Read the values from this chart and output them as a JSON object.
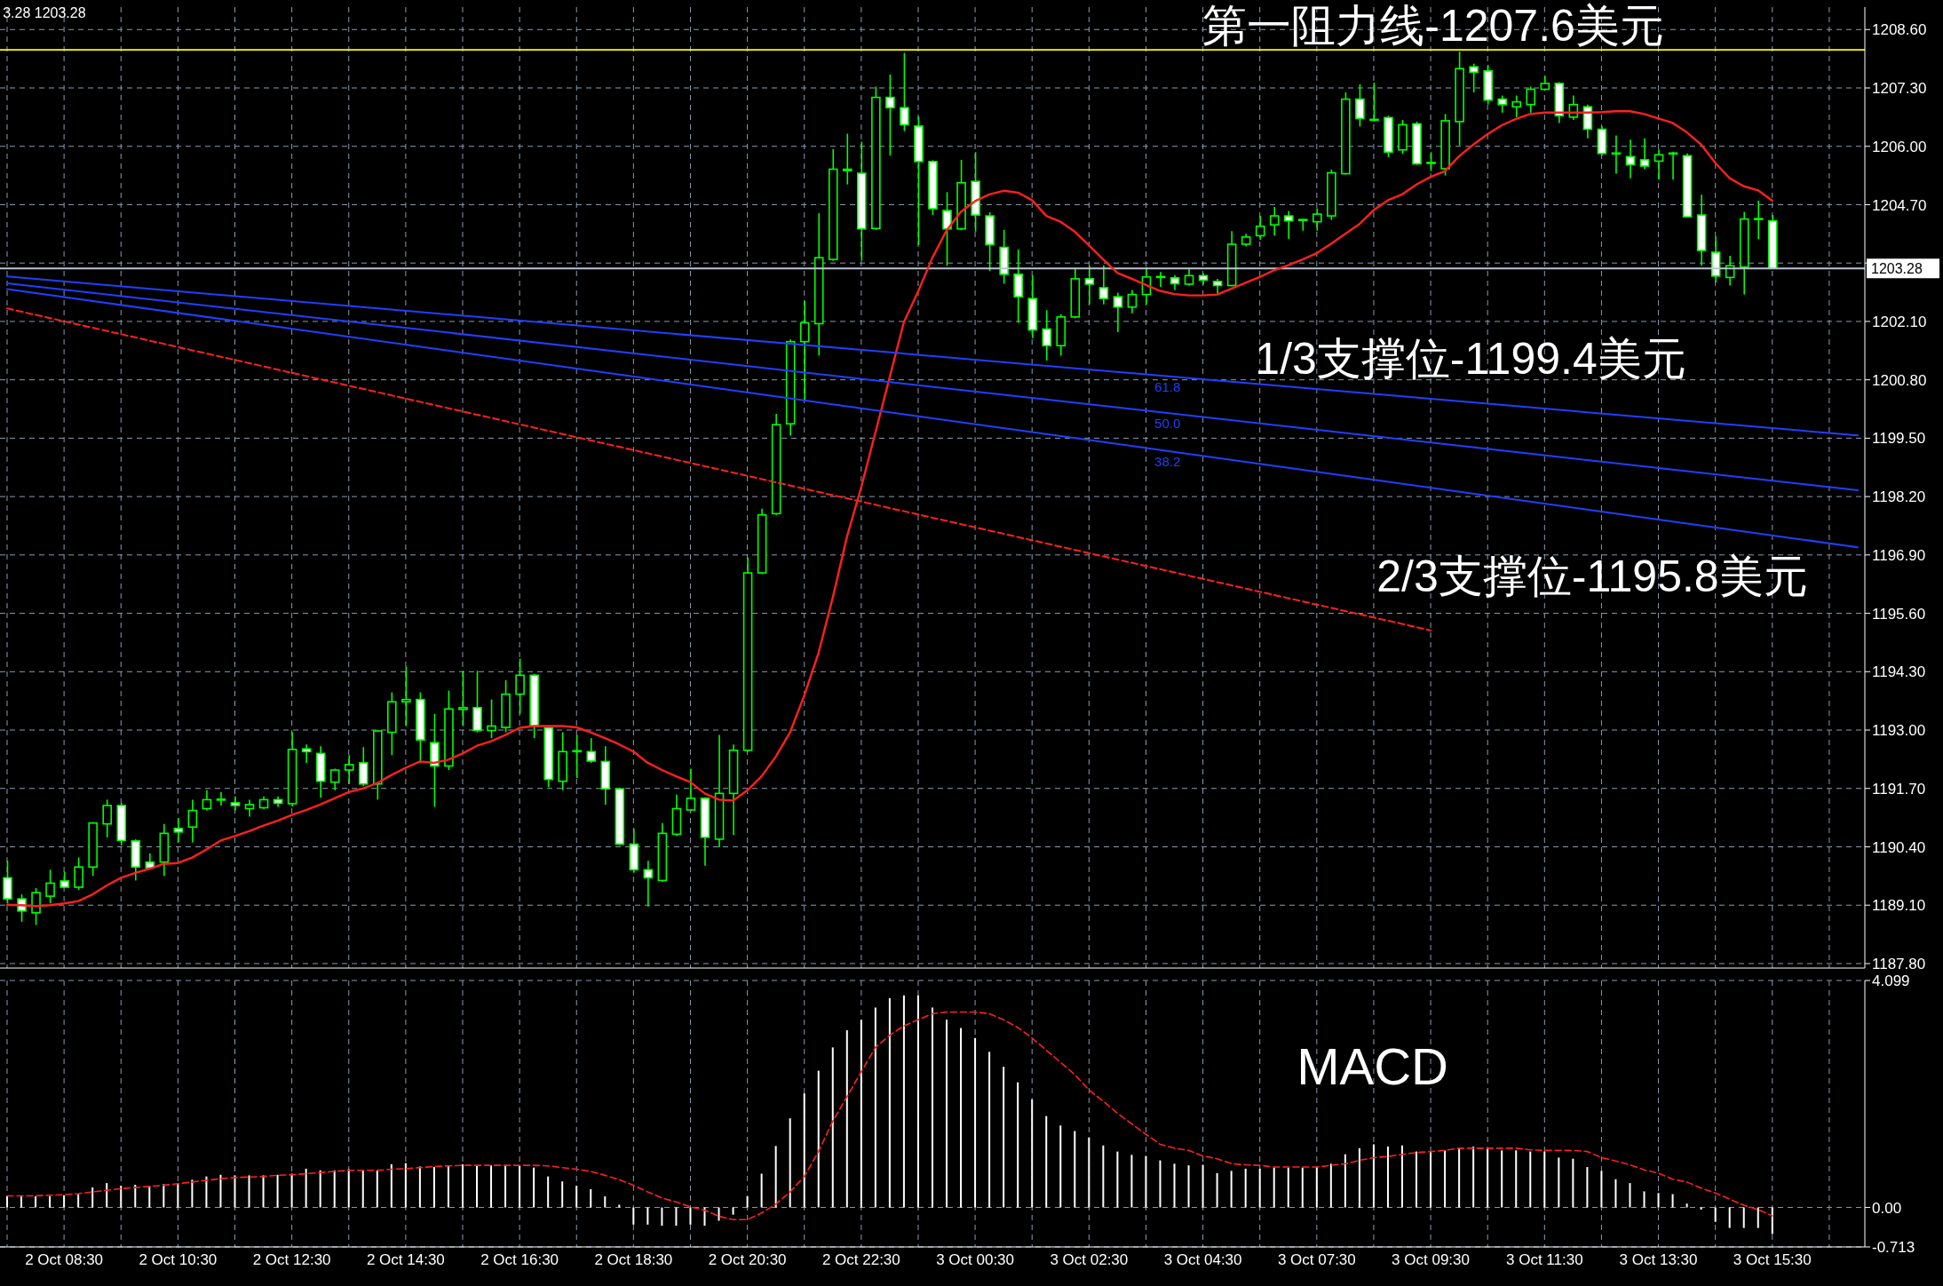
{
  "chart_data": [
    {
      "type": "candlestick",
      "color": "#00ff00",
      "annotations": [
        "3.28 1203.28",
        "第一阻力线-1207.6美元",
        "1/3支撑位-1199.4美元",
        "2/3支撑位-1195.8美元"
      ],
      "categories": [
        null,
        null,
        null,
        null,
        null,
        null,
        null,
        null,
        null,
        null,
        null,
        null,
        null,
        null,
        null,
        null,
        null,
        null,
        null,
        null,
        null,
        null,
        null,
        null,
        null,
        null,
        null,
        null,
        null,
        null,
        null,
        null,
        null,
        null,
        null,
        null,
        null,
        null,
        null,
        null,
        null,
        null,
        null,
        null,
        null,
        null,
        null,
        null,
        null,
        null,
        null,
        null,
        null,
        null,
        null,
        null,
        null,
        null,
        null,
        null,
        null,
        null,
        null,
        null,
        null,
        null,
        null,
        null,
        null,
        null,
        null,
        null,
        null,
        null,
        null,
        null,
        null,
        null,
        null,
        null,
        null,
        null,
        null,
        null,
        null,
        null,
        null,
        null,
        null,
        null,
        null,
        null,
        null,
        null,
        null,
        null,
        null,
        null,
        null,
        null,
        null,
        null,
        null,
        null,
        null,
        null,
        null,
        null,
        null,
        null,
        null,
        null,
        null,
        null,
        null,
        null,
        null,
        null,
        null,
        null,
        null,
        null,
        null,
        null,
        null,
        null,
        null,
        null,
        null,
        null,
        null
      ],
      "ohlc": [
        [
          1189.71,
          1190.09,
          1189.14,
          1189.24
        ],
        [
          1189.24,
          1189.34,
          1188.73,
          1188.97
        ],
        [
          1188.93,
          1189.48,
          1188.66,
          1189.38
        ],
        [
          1189.3,
          1189.89,
          1189.14,
          1189.59
        ],
        [
          1189.64,
          1189.85,
          1189.48,
          1189.5
        ],
        [
          1189.5,
          1190.16,
          1189.44,
          1189.95
        ],
        [
          1189.95,
          1190.95,
          1189.75,
          1190.93
        ],
        [
          1190.91,
          1191.45,
          1190.61,
          1191.32
        ],
        [
          1191.32,
          1191.38,
          1190.43,
          1190.54
        ],
        [
          1190.53,
          1190.57,
          1189.65,
          1189.95
        ],
        [
          1190.06,
          1190.25,
          1189.9,
          1189.93
        ],
        [
          1190.06,
          1190.91,
          1189.75,
          1190.7
        ],
        [
          1190.81,
          1191.04,
          1190.5,
          1190.73
        ],
        [
          1190.84,
          1191.45,
          1190.5,
          1191.21
        ],
        [
          1191.25,
          1191.66,
          1191.21,
          1191.45
        ],
        [
          1191.44,
          1191.62,
          1191.32,
          1191.46
        ],
        [
          1191.38,
          1191.52,
          1191.21,
          1191.32
        ],
        [
          1191.25,
          1191.45,
          1191.07,
          1191.34
        ],
        [
          1191.27,
          1191.52,
          1191.24,
          1191.45
        ],
        [
          1191.45,
          1191.52,
          1191.29,
          1191.37
        ],
        [
          1191.36,
          1192.95,
          1191.3,
          1192.57
        ],
        [
          1192.58,
          1192.68,
          1192.27,
          1192.52
        ],
        [
          1192.48,
          1192.64,
          1191.49,
          1191.86
        ],
        [
          1191.84,
          1192.14,
          1191.66,
          1192.11
        ],
        [
          1192.11,
          1192.44,
          1191.8,
          1192.23
        ],
        [
          1192.27,
          1192.62,
          1191.75,
          1191.8
        ],
        [
          1191.8,
          1193.0,
          1191.45,
          1192.98
        ],
        [
          1192.95,
          1193.84,
          1192.44,
          1193.63
        ],
        [
          1193.63,
          1194.41,
          1193.09,
          1193.68
        ],
        [
          1193.68,
          1193.84,
          1192.27,
          1192.78
        ],
        [
          1192.72,
          1193.36,
          1191.29,
          1192.2
        ],
        [
          1192.2,
          1193.88,
          1192.11,
          1193.47
        ],
        [
          1193.46,
          1194.32,
          1193.09,
          1193.5
        ],
        [
          1193.5,
          1194.32,
          1192.95,
          1192.99
        ],
        [
          1192.99,
          1193.68,
          1192.82,
          1193.09
        ],
        [
          1193.06,
          1194.11,
          1192.95,
          1193.8
        ],
        [
          1193.8,
          1194.59,
          1193.36,
          1194.22
        ],
        [
          1194.22,
          1194.25,
          1192.82,
          1193.09
        ],
        [
          1193.05,
          1193.09,
          1191.73,
          1191.9
        ],
        [
          1191.86,
          1192.95,
          1191.66,
          1192.52
        ],
        [
          1192.52,
          1192.89,
          1191.93,
          1192.54
        ],
        [
          1192.52,
          1192.82,
          1192.27,
          1192.31
        ],
        [
          1192.3,
          1192.64,
          1191.34,
          1191.69
        ],
        [
          1191.69,
          1191.72,
          1190.44,
          1190.46
        ],
        [
          1190.46,
          1190.8,
          1189.82,
          1189.89
        ],
        [
          1189.89,
          1190.09,
          1189.07,
          1189.71
        ],
        [
          1189.65,
          1190.93,
          1189.62,
          1190.7
        ],
        [
          1190.68,
          1191.56,
          1190.64,
          1191.25
        ],
        [
          1191.22,
          1192.14,
          1191.21,
          1191.48
        ],
        [
          1191.48,
          1191.5,
          1189.98,
          1190.61
        ],
        [
          1190.57,
          1192.89,
          1190.39,
          1191.59
        ],
        [
          1191.59,
          1192.68,
          1190.66,
          1192.55
        ],
        [
          1192.55,
          1196.84,
          1192.52,
          1196.5
        ],
        [
          1196.5,
          1197.93,
          1196.47,
          1197.79
        ],
        [
          1197.82,
          1200.04,
          1197.79,
          1199.8
        ],
        [
          1199.82,
          1201.7,
          1199.56,
          1201.65
        ],
        [
          1201.65,
          1202.56,
          1200.34,
          1202.07
        ],
        [
          1202.05,
          1204.51,
          1201.34,
          1203.52
        ],
        [
          1203.48,
          1205.94,
          1203.45,
          1205.49
        ],
        [
          1205.46,
          1206.28,
          1205.15,
          1205.49
        ],
        [
          1205.4,
          1206.1,
          1203.45,
          1204.16
        ],
        [
          1204.17,
          1207.33,
          1204.14,
          1207.09
        ],
        [
          1207.09,
          1207.6,
          1205.79,
          1206.86
        ],
        [
          1206.86,
          1208.08,
          1206.34,
          1206.48
        ],
        [
          1206.45,
          1206.66,
          1203.8,
          1205.66
        ],
        [
          1205.66,
          1205.69,
          1204.47,
          1204.61
        ],
        [
          1204.57,
          1204.98,
          1203.34,
          1204.16
        ],
        [
          1204.16,
          1205.7,
          1204.13,
          1205.19
        ],
        [
          1205.22,
          1205.87,
          1204.1,
          1204.47
        ],
        [
          1204.45,
          1204.53,
          1203.22,
          1203.81
        ],
        [
          1203.75,
          1204.14,
          1202.94,
          1203.15
        ],
        [
          1203.15,
          1203.7,
          1202.07,
          1202.65
        ],
        [
          1202.61,
          1203.13,
          1201.73,
          1201.91
        ],
        [
          1201.93,
          1202.35,
          1201.23,
          1201.56
        ],
        [
          1201.56,
          1202.26,
          1201.34,
          1202.2
        ],
        [
          1202.2,
          1203.29,
          1202.17,
          1203.05
        ],
        [
          1203.05,
          1203.35,
          1202.48,
          1202.93
        ],
        [
          1202.85,
          1203.35,
          1202.48,
          1202.61
        ],
        [
          1202.65,
          1202.74,
          1201.86,
          1202.42
        ],
        [
          1202.42,
          1202.8,
          1202.28,
          1202.7
        ],
        [
          1202.7,
          1203.31,
          1202.48,
          1203.09
        ],
        [
          1203.09,
          1203.2,
          1202.87,
          1203.1
        ],
        [
          1203.07,
          1203.13,
          1202.8,
          1202.94
        ],
        [
          1202.93,
          1203.29,
          1202.9,
          1203.12
        ],
        [
          1203.12,
          1203.17,
          1202.92,
          1203.02
        ],
        [
          1202.99,
          1203.05,
          1202.72,
          1202.9
        ],
        [
          1202.9,
          1204.11,
          1202.88,
          1203.82
        ],
        [
          1203.82,
          1204.05,
          1203.77,
          1203.98
        ],
        [
          1204.01,
          1204.45,
          1203.92,
          1204.22
        ],
        [
          1204.25,
          1204.65,
          1204.01,
          1204.45
        ],
        [
          1204.45,
          1204.56,
          1203.94,
          1204.34
        ],
        [
          1204.36,
          1204.38,
          1204.12,
          1204.37
        ],
        [
          1204.32,
          1204.62,
          1204.12,
          1204.49
        ],
        [
          1204.45,
          1205.48,
          1204.36,
          1205.41
        ],
        [
          1205.39,
          1207.2,
          1205.37,
          1207.05
        ],
        [
          1207.05,
          1207.38,
          1206.44,
          1206.62
        ],
        [
          1206.59,
          1207.42,
          1206.55,
          1206.6
        ],
        [
          1206.64,
          1206.68,
          1205.76,
          1205.87
        ],
        [
          1205.92,
          1206.59,
          1205.83,
          1206.48
        ],
        [
          1206.5,
          1206.55,
          1205.59,
          1205.61
        ],
        [
          1205.63,
          1205.87,
          1205.45,
          1205.64
        ],
        [
          1205.5,
          1206.72,
          1205.35,
          1206.57
        ],
        [
          1206.55,
          1208.11,
          1206.02,
          1207.73
        ],
        [
          1207.77,
          1207.84,
          1207.2,
          1207.65
        ],
        [
          1207.68,
          1207.81,
          1206.93,
          1207.03
        ],
        [
          1207.05,
          1207.13,
          1206.75,
          1206.93
        ],
        [
          1206.88,
          1207.13,
          1206.65,
          1206.99
        ],
        [
          1206.93,
          1207.33,
          1206.75,
          1207.27
        ],
        [
          1207.27,
          1207.57,
          1207.24,
          1207.4
        ],
        [
          1207.4,
          1207.43,
          1206.52,
          1206.68
        ],
        [
          1206.65,
          1207.13,
          1206.59,
          1206.93
        ],
        [
          1206.88,
          1206.93,
          1206.18,
          1206.38
        ],
        [
          1206.38,
          1206.45,
          1205.79,
          1205.84
        ],
        [
          1205.84,
          1206.24,
          1205.39,
          1205.85
        ],
        [
          1205.77,
          1206.15,
          1205.29,
          1205.59
        ],
        [
          1205.7,
          1206.18,
          1205.49,
          1205.56
        ],
        [
          1205.67,
          1205.93,
          1205.26,
          1205.81
        ],
        [
          1205.84,
          1205.88,
          1205.26,
          1205.85
        ],
        [
          1205.79,
          1205.84,
          1204.42,
          1204.43
        ],
        [
          1204.47,
          1204.92,
          1203.34,
          1203.68
        ],
        [
          1203.64,
          1203.99,
          1202.97,
          1203.11
        ],
        [
          1203.08,
          1203.56,
          1202.9,
          1203.34
        ],
        [
          1203.31,
          1204.54,
          1202.7,
          1204.38
        ],
        [
          1204.38,
          1204.79,
          1203.93,
          1204.39
        ],
        [
          1204.34,
          1204.47,
          1203.28,
          1203.28
        ],
        null,
        null,
        null,
        null,
        null,
        null
      ],
      "series": [
        {
          "type": "line",
          "color": "#ff2020",
          "values": [
            1189.11,
            1189.1,
            1189.08,
            1189.1,
            1189.14,
            1189.19,
            1189.34,
            1189.54,
            1189.71,
            1189.82,
            1189.91,
            1190.02,
            1190.04,
            1190.16,
            1190.34,
            1190.54,
            1190.64,
            1190.75,
            1190.87,
            1190.98,
            1191.11,
            1191.22,
            1191.34,
            1191.48,
            1191.62,
            1191.7,
            1191.82,
            1192.0,
            1192.16,
            1192.3,
            1192.27,
            1192.34,
            1192.48,
            1192.65,
            1192.75,
            1192.89,
            1193.05,
            1193.09,
            1193.09,
            1193.09,
            1193.06,
            1192.95,
            1192.82,
            1192.68,
            1192.52,
            1192.27,
            1192.11,
            1191.97,
            1191.84,
            1191.59,
            1191.45,
            1191.43,
            1191.66,
            1191.97,
            1192.41,
            1192.95,
            1193.77,
            1194.72,
            1195.95,
            1197.31,
            1198.41,
            1199.63,
            1200.86,
            1202.09,
            1202.77,
            1203.52,
            1204.13,
            1204.54,
            1204.78,
            1204.93,
            1205.01,
            1204.97,
            1204.8,
            1204.45,
            1204.32,
            1204.1,
            1203.79,
            1203.48,
            1203.18,
            1203.05,
            1202.91,
            1202.78,
            1202.71,
            1202.68,
            1202.68,
            1202.7,
            1202.83,
            1202.96,
            1203.09,
            1203.24,
            1203.35,
            1203.48,
            1203.62,
            1203.83,
            1204.05,
            1204.27,
            1204.58,
            1204.8,
            1204.93,
            1205.15,
            1205.32,
            1205.45,
            1205.78,
            1206.04,
            1206.27,
            1206.47,
            1206.61,
            1206.72,
            1206.75,
            1206.75,
            1206.75,
            1206.75,
            1206.76,
            1206.78,
            1206.78,
            1206.72,
            1206.62,
            1206.52,
            1206.31,
            1206.04,
            1205.63,
            1205.29,
            1205.11,
            1205.02,
            1204.79,
            null,
            null,
            null,
            null,
            null,
            null
          ]
        },
        {
          "type": "line",
          "name": "61.8",
          "color": "#2040ff",
          "values": [
            1203.1,
            null,
            null,
            null,
            null,
            null,
            null,
            null,
            null,
            null,
            null,
            null,
            null,
            null,
            null,
            null,
            null,
            null,
            null,
            null,
            null,
            null,
            null,
            null,
            null,
            null,
            null,
            null,
            null,
            null,
            null,
            null,
            null,
            null,
            null,
            null,
            null,
            null,
            null,
            null,
            null,
            null,
            null,
            null,
            null,
            null,
            null,
            null,
            null,
            null,
            null,
            null,
            null,
            null,
            null,
            null,
            null,
            null,
            null,
            null,
            null,
            null,
            null,
            null,
            null,
            null,
            null,
            null,
            null,
            null,
            null,
            null,
            null,
            null,
            null,
            null,
            null,
            null,
            null,
            null,
            null,
            null,
            null,
            null,
            null,
            null,
            null,
            null,
            null,
            null,
            null,
            null,
            null,
            null,
            null,
            null,
            null,
            null,
            null,
            null,
            null,
            null,
            null,
            null,
            null,
            null,
            null,
            null,
            null,
            null,
            null,
            null,
            null,
            null,
            null,
            null,
            null,
            null,
            null,
            null,
            null,
            null,
            null,
            null,
            null,
            null,
            null,
            null,
            null,
            null,
            1199.56
          ]
        },
        {
          "type": "line",
          "name": "50.0",
          "color": "#2040ff",
          "values": [
            1202.95,
            null,
            null,
            null,
            null,
            null,
            null,
            null,
            null,
            null,
            null,
            null,
            null,
            null,
            null,
            null,
            null,
            null,
            null,
            null,
            null,
            null,
            null,
            null,
            null,
            null,
            null,
            null,
            null,
            null,
            null,
            null,
            null,
            null,
            null,
            null,
            null,
            null,
            null,
            null,
            null,
            null,
            null,
            null,
            null,
            null,
            null,
            null,
            null,
            null,
            null,
            null,
            null,
            null,
            null,
            null,
            null,
            null,
            null,
            null,
            null,
            null,
            null,
            null,
            null,
            null,
            null,
            null,
            null,
            null,
            null,
            null,
            null,
            null,
            null,
            null,
            null,
            null,
            null,
            null,
            null,
            null,
            null,
            null,
            null,
            null,
            null,
            null,
            null,
            null,
            null,
            null,
            null,
            null,
            null,
            null,
            null,
            null,
            null,
            null,
            null,
            null,
            null,
            null,
            null,
            null,
            null,
            null,
            null,
            null,
            null,
            null,
            null,
            null,
            null,
            null,
            null,
            null,
            null,
            null,
            null,
            null,
            null,
            null,
            null,
            null,
            null,
            null,
            null,
            null,
            1198.34
          ]
        },
        {
          "type": "line",
          "name": "38.2",
          "color": "#2040ff",
          "values": [
            1202.82,
            null,
            null,
            null,
            null,
            null,
            null,
            null,
            null,
            null,
            null,
            null,
            null,
            null,
            null,
            null,
            null,
            null,
            null,
            null,
            null,
            null,
            null,
            null,
            null,
            null,
            null,
            null,
            null,
            null,
            null,
            null,
            null,
            null,
            null,
            null,
            null,
            null,
            null,
            null,
            null,
            null,
            null,
            null,
            null,
            null,
            null,
            null,
            null,
            null,
            null,
            null,
            null,
            null,
            null,
            null,
            null,
            null,
            null,
            null,
            null,
            null,
            null,
            null,
            null,
            null,
            null,
            null,
            null,
            null,
            null,
            null,
            null,
            null,
            null,
            null,
            null,
            null,
            null,
            null,
            null,
            null,
            null,
            null,
            null,
            null,
            null,
            null,
            null,
            null,
            null,
            null,
            null,
            null,
            null,
            null,
            null,
            null,
            null,
            null,
            null,
            null,
            null,
            null,
            null,
            null,
            null,
            null,
            null,
            null,
            null,
            null,
            null,
            null,
            null,
            null,
            null,
            null,
            null,
            null,
            null,
            null,
            null,
            null,
            null,
            null,
            null,
            null,
            null,
            null,
            1197.07
          ]
        },
        {
          "type": "line",
          "color": "#ff2020",
          "line_style": "dashed",
          "values": [
            1202.39,
            null,
            null,
            null,
            null,
            null,
            null,
            null,
            null,
            null,
            null,
            null,
            null,
            null,
            null,
            null,
            null,
            null,
            null,
            null,
            null,
            null,
            null,
            null,
            null,
            null,
            null,
            null,
            null,
            null,
            null,
            null,
            null,
            null,
            null,
            null,
            null,
            null,
            null,
            null,
            null,
            null,
            null,
            null,
            null,
            null,
            null,
            null,
            null,
            null,
            null,
            null,
            null,
            null,
            null,
            null,
            null,
            null,
            null,
            null,
            null,
            null,
            null,
            null,
            null,
            null,
            null,
            null,
            null,
            null,
            null,
            null,
            null,
            null,
            null,
            null,
            null,
            null,
            null,
            null,
            null,
            null,
            null,
            null,
            null,
            null,
            null,
            null,
            null,
            null,
            null,
            null,
            null,
            null,
            null,
            null,
            null,
            null,
            null,
            null,
            1195.22,
            null,
            null,
            null,
            null,
            null,
            null,
            null,
            null,
            null,
            null,
            null,
            null,
            null,
            null,
            null,
            null,
            null,
            null,
            null,
            null,
            null,
            null,
            null,
            null,
            null,
            null,
            null,
            null,
            null,
            null
          ]
        }
      ],
      "ylim": [
        1187.7,
        1209.1
      ],
      "yticks": [
        {
          "value": 1208.6,
          "label": "1208.60"
        },
        {
          "value": 1207.3,
          "label": "1207.30"
        },
        {
          "value": 1206,
          "label": "1206.00"
        },
        {
          "value": 1204.7,
          "label": "1204.70"
        },
        {
          "value": 1203.4,
          "label": null
        },
        {
          "value": 1202.1,
          "label": "1202.10"
        },
        {
          "value": 1200.8,
          "label": "1200.80"
        },
        {
          "value": 1199.5,
          "label": "1199.50"
        },
        {
          "value": 1198.2,
          "label": "1198.20"
        },
        {
          "value": 1196.9,
          "label": "1196.90"
        },
        {
          "value": 1195.6,
          "label": "1195.60"
        },
        {
          "value": 1194.3,
          "label": "1194.30"
        },
        {
          "value": 1193,
          "label": "1193.00"
        },
        {
          "value": 1191.7,
          "label": "1191.70"
        },
        {
          "value": 1190.4,
          "label": "1190.40"
        },
        {
          "value": 1189.1,
          "label": "1189.10"
        },
        {
          "value": 1187.8,
          "label": "1187.80"
        }
      ],
      "grid": true,
      "ref_lines": [
        {
          "axis": "y",
          "value": 1208.15,
          "color": "#ffff00"
        },
        {
          "axis": "y",
          "value": 1203.28,
          "label": "1203.28",
          "color": "#b8c4d4"
        }
      ]
    },
    {
      "type": "bar",
      "title": "MACD",
      "categories": [
        null,
        null,
        null,
        null,
        "2 Oct 08:30",
        null,
        null,
        null,
        null,
        null,
        null,
        null,
        "2 Oct 10:30",
        null,
        null,
        null,
        null,
        null,
        null,
        null,
        "2 Oct 12:30",
        null,
        null,
        null,
        null,
        null,
        null,
        null,
        "2 Oct 14:30",
        null,
        null,
        null,
        null,
        null,
        null,
        null,
        "2 Oct 16:30",
        null,
        null,
        null,
        null,
        null,
        null,
        null,
        "2 Oct 18:30",
        null,
        null,
        null,
        null,
        null,
        null,
        null,
        "2 Oct 20:30",
        null,
        null,
        null,
        null,
        null,
        null,
        null,
        "2 Oct 22:30",
        null,
        null,
        null,
        null,
        null,
        null,
        null,
        "3 Oct 00:30",
        null,
        null,
        null,
        null,
        null,
        null,
        null,
        "3 Oct 02:30",
        null,
        null,
        null,
        null,
        null,
        null,
        null,
        "3 Oct 04:30",
        null,
        null,
        null,
        null,
        null,
        null,
        null,
        "3 Oct 07:30",
        null,
        null,
        null,
        null,
        null,
        null,
        null,
        "3 Oct 09:30",
        null,
        null,
        null,
        null,
        null,
        null,
        null,
        "3 Oct 11:30",
        null,
        null,
        null,
        null,
        null,
        null,
        null,
        "3 Oct 13:30",
        null,
        null,
        null,
        null,
        null,
        null,
        null,
        "3 Oct 15:30",
        null,
        null,
        null,
        null,
        null,
        null
      ],
      "series": [
        {
          "type": "bar",
          "color": "#ffffff",
          "values": [
            0.2,
            0.2,
            0.2,
            0.2,
            0.22,
            0.24,
            0.36,
            0.44,
            0.39,
            0.41,
            0.39,
            0.42,
            0.44,
            0.5,
            0.56,
            0.59,
            0.58,
            0.58,
            0.58,
            0.59,
            0.61,
            0.7,
            0.67,
            0.67,
            0.69,
            0.67,
            0.67,
            0.78,
            0.8,
            0.74,
            0.73,
            0.76,
            0.78,
            0.76,
            0.76,
            0.76,
            0.76,
            0.72,
            0.56,
            0.47,
            0.39,
            0.33,
            0.2,
            0.05,
            -0.31,
            -0.31,
            -0.33,
            -0.33,
            -0.31,
            -0.33,
            -0.24,
            -0.13,
            0.2,
            0.61,
            1.11,
            1.61,
            2.06,
            2.47,
            2.89,
            3.2,
            3.39,
            3.61,
            3.78,
            3.83,
            3.83,
            3.61,
            3.39,
            3.24,
            3.06,
            2.81,
            2.54,
            2.26,
            1.95,
            1.65,
            1.48,
            1.38,
            1.26,
            1.12,
            1.01,
            0.95,
            0.93,
            0.85,
            0.79,
            0.76,
            0.77,
            0.62,
            0.66,
            0.7,
            0.7,
            0.72,
            0.72,
            0.72,
            0.73,
            0.79,
            0.96,
            1.07,
            1.14,
            1.1,
            1.12,
            1.01,
            1.01,
            1.03,
            1.07,
            1.1,
            1.07,
            1.03,
            1.03,
            1.01,
            1.01,
            0.9,
            0.88,
            0.73,
            0.66,
            0.51,
            0.44,
            0.29,
            0.26,
            0.24,
            0.07,
            -0.04,
            -0.26,
            -0.37,
            -0.37,
            -0.37,
            -0.48,
            null,
            null,
            null,
            null,
            null,
            null
          ]
        },
        {
          "type": "line",
          "color": "#ff2020",
          "line_style": "dashed",
          "values": [
            0.21,
            0.21,
            0.21,
            0.22,
            0.23,
            0.25,
            0.28,
            0.31,
            0.34,
            0.36,
            0.38,
            0.4,
            0.43,
            0.46,
            0.49,
            0.52,
            0.54,
            0.55,
            0.56,
            0.58,
            0.59,
            0.61,
            0.63,
            0.65,
            0.67,
            0.67,
            0.67,
            0.69,
            0.7,
            0.72,
            0.74,
            0.75,
            0.76,
            0.76,
            0.76,
            0.76,
            0.76,
            0.76,
            0.75,
            0.72,
            0.69,
            0.65,
            0.58,
            0.5,
            0.4,
            0.28,
            0.17,
            0.1,
            0.01,
            -0.05,
            -0.16,
            -0.22,
            -0.22,
            -0.1,
            0.06,
            0.28,
            0.56,
            1.01,
            1.56,
            2.0,
            2.45,
            2.89,
            3.11,
            3.28,
            3.39,
            3.5,
            3.53,
            3.53,
            3.53,
            3.5,
            3.39,
            3.25,
            3.06,
            2.84,
            2.62,
            2.4,
            2.12,
            1.92,
            1.7,
            1.51,
            1.32,
            1.14,
            1.07,
            1.03,
            0.93,
            0.88,
            0.79,
            0.77,
            0.76,
            0.73,
            0.73,
            0.73,
            0.73,
            0.76,
            0.79,
            0.85,
            0.9,
            0.92,
            0.96,
            0.99,
            1.01,
            1.03,
            1.07,
            1.07,
            1.07,
            1.07,
            1.07,
            1.04,
            1.03,
            1.03,
            1.03,
            1.01,
            0.9,
            0.84,
            0.77,
            0.68,
            0.62,
            0.51,
            0.46,
            0.35,
            0.26,
            0.15,
            0.04,
            -0.04,
            -0.15,
            null,
            null,
            null,
            null,
            null,
            null
          ]
        }
      ],
      "ylim": [
        -0.713,
        4.099
      ],
      "yticks": [
        4.099,
        {
          "value": 0,
          "label": "0.00"
        },
        -0.713
      ],
      "grid": true
    }
  ]
}
